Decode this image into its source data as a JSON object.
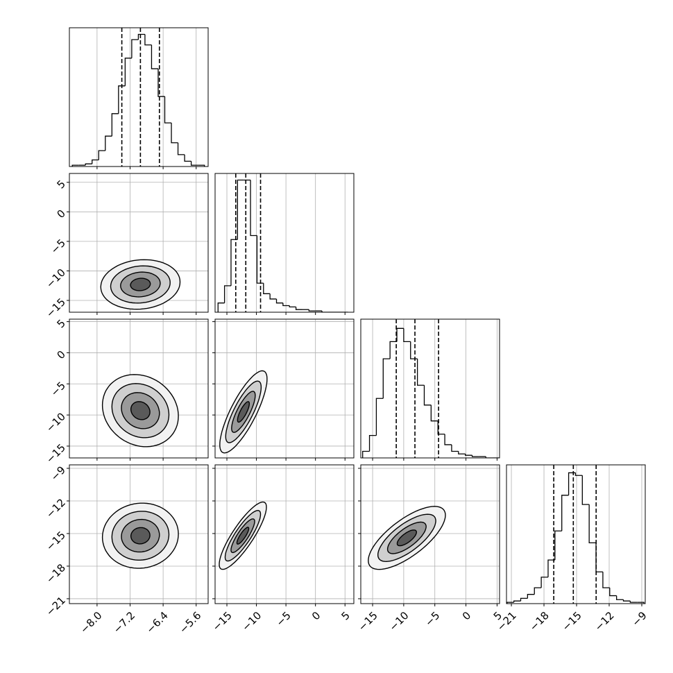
{
  "chart_data": {
    "type": "corner",
    "grid": true,
    "color": "#000000",
    "axes": [
      {
        "lim": [
          -8.67,
          -5.31
        ],
        "ticks": [
          {
            "value": -8.0,
            "label": "−8.0"
          },
          {
            "value": -7.2,
            "label": "−7.2"
          },
          {
            "value": -6.4,
            "label": "−6.4"
          },
          {
            "value": -5.6,
            "label": "−5.6"
          }
        ]
      },
      {
        "lim": [
          -17,
          6.5
        ],
        "ticks": [
          {
            "value": -15,
            "label": "−15"
          },
          {
            "value": -10,
            "label": "−10"
          },
          {
            "value": -5,
            "label": "−5"
          },
          0,
          5
        ]
      },
      {
        "lim": [
          -16.9,
          5.4
        ],
        "ticks": [
          {
            "value": -15,
            "label": "−15"
          },
          {
            "value": -10,
            "label": "−10"
          },
          {
            "value": -5,
            "label": "−5"
          },
          0,
          5
        ]
      },
      {
        "lim": [
          -21.45,
          -8.68
        ],
        "ticks": [
          {
            "value": -21,
            "label": "−21"
          },
          {
            "value": -18,
            "label": "−18"
          },
          {
            "value": -15,
            "label": "−15"
          },
          {
            "value": -12,
            "label": "−12"
          },
          {
            "value": -9,
            "label": "−9"
          }
        ]
      }
    ],
    "hist_ylim": [
      0,
      1.05
    ],
    "hists": [
      {
        "bins": [
          -8.6,
          -8.44,
          -8.28,
          -8.12,
          -7.96,
          -7.8,
          -7.64,
          -7.48,
          -7.32,
          -7.16,
          -7.0,
          -6.84,
          -6.68,
          -6.52,
          -6.36,
          -6.2,
          -6.04,
          -5.88,
          -5.72,
          -5.56,
          -5.4
        ],
        "counts": [
          0.01,
          0.01,
          0.02,
          0.05,
          0.12,
          0.23,
          0.4,
          0.61,
          0.82,
          0.96,
          1,
          0.92,
          0.74,
          0.53,
          0.33,
          0.18,
          0.09,
          0.04,
          0.01,
          0.01
        ],
        "quantiles": [
          -7.4,
          -6.95,
          -6.49
        ]
      },
      {
        "bins": [
          -16.5,
          -15.4,
          -14.3,
          -13.2,
          -12.1,
          -11.0,
          -9.9,
          -8.8,
          -7.7,
          -6.6,
          -5.5,
          -4.4,
          -3.3,
          -2.2,
          -1.1,
          0,
          1.1,
          2.2,
          3.3,
          4.4,
          5.5
        ],
        "counts": [
          0.07,
          0.2,
          0.55,
          1,
          1,
          0.58,
          0.22,
          0.14,
          0.1,
          0.07,
          0.05,
          0.04,
          0.02,
          0.02,
          0.01,
          0.01,
          0,
          0,
          0,
          0
        ],
        "quantiles": [
          -13.5,
          -11.8,
          -9.3
        ]
      },
      {
        "bins": [
          -16.6,
          -15.5,
          -14.4,
          -13.3,
          -12.2,
          -11.1,
          -10.0,
          -8.9,
          -7.8,
          -6.7,
          -5.6,
          -4.5,
          -3.4,
          -2.3,
          -1.2,
          -0.1,
          1.0,
          2.1,
          3.2,
          4.3,
          5.4
        ],
        "counts": [
          0.05,
          0.17,
          0.45,
          0.75,
          0.88,
          0.98,
          0.88,
          0.75,
          0.55,
          0.4,
          0.28,
          0.18,
          0.1,
          0.05,
          0.03,
          0.02,
          0.01,
          0.01,
          0,
          0
        ],
        "quantiles": [
          -11.2,
          -8.2,
          -4.4
        ]
      },
      {
        "bins": [
          -21.4,
          -20.77,
          -20.14,
          -19.51,
          -18.88,
          -18.25,
          -17.62,
          -16.99,
          -16.36,
          -15.73,
          -15.1,
          -14.47,
          -13.84,
          -13.21,
          -12.58,
          -11.95,
          -11.32,
          -10.69,
          -10.06,
          -9.43,
          -8.8
        ],
        "counts": [
          0.01,
          0.02,
          0.04,
          0.07,
          0.12,
          0.2,
          0.33,
          0.55,
          0.82,
          0.99,
          0.97,
          0.75,
          0.46,
          0.24,
          0.12,
          0.06,
          0.03,
          0.02,
          0.01,
          0.01
        ],
        "quantiles": [
          -17.1,
          -15.3,
          -13.2
        ]
      }
    ],
    "levels": [
      0.5,
      1,
      1.5,
      2
    ],
    "pairs": [
      {
        "mean": [
          -6.95,
          -12.3
        ],
        "std": [
          0.48,
          2.1
        ],
        "corr": 0.1
      },
      {
        "mean": [
          -6.95,
          -9.3
        ],
        "std": [
          0.46,
          2.9
        ],
        "corr": -0.15
      },
      {
        "mean": [
          -12.2,
          -9.5
        ],
        "std": [
          2.0,
          3.3
        ],
        "corr": 0.8
      },
      {
        "mean": [
          -6.95,
          -15.2
        ],
        "std": [
          0.46,
          1.5
        ],
        "corr": 0.05
      },
      {
        "mean": [
          -12.3,
          -15.2
        ],
        "std": [
          2.0,
          1.55
        ],
        "corr": 0.85
      },
      {
        "mean": [
          -9.5,
          -15.4
        ],
        "std": [
          3.1,
          1.45
        ],
        "corr": 0.72
      }
    ]
  }
}
